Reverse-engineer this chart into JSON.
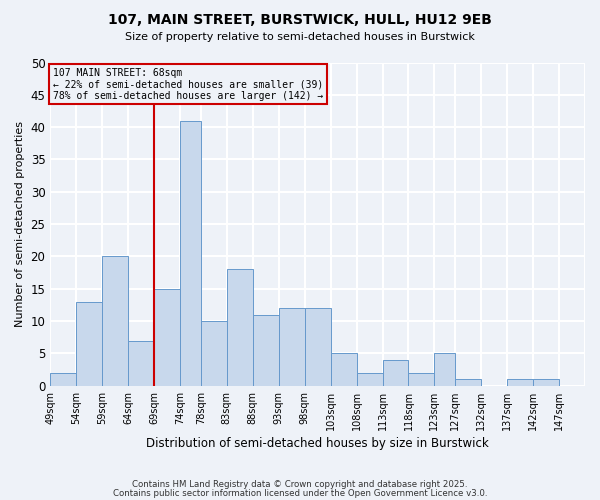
{
  "title": "107, MAIN STREET, BURSTWICK, HULL, HU12 9EB",
  "subtitle": "Size of property relative to semi-detached houses in Burstwick",
  "xlabel": "Distribution of semi-detached houses by size in Burstwick",
  "ylabel": "Number of semi-detached properties",
  "bin_labels": [
    "49sqm",
    "54sqm",
    "59sqm",
    "64sqm",
    "69sqm",
    "74sqm",
    "78sqm",
    "83sqm",
    "88sqm",
    "93sqm",
    "98sqm",
    "103sqm",
    "108sqm",
    "113sqm",
    "118sqm",
    "123sqm",
    "127sqm",
    "132sqm",
    "137sqm",
    "142sqm",
    "147sqm"
  ],
  "bin_edges": [
    49,
    54,
    59,
    64,
    69,
    74,
    78,
    83,
    88,
    93,
    98,
    103,
    108,
    113,
    118,
    123,
    127,
    132,
    137,
    142,
    147
  ],
  "counts": [
    2,
    13,
    20,
    7,
    15,
    41,
    10,
    18,
    11,
    12,
    12,
    5,
    2,
    4,
    2,
    5,
    1,
    0,
    1,
    1,
    0
  ],
  "bar_color": "#c8d8ec",
  "bar_edgecolor": "#6699cc",
  "vline_x": 69,
  "vline_color": "#cc0000",
  "annotation_title": "107 MAIN STREET: 68sqm",
  "annotation_line1": "← 22% of semi-detached houses are smaller (39)",
  "annotation_line2": "78% of semi-detached houses are larger (142) →",
  "annotation_box_color": "#cc0000",
  "ylim": [
    0,
    50
  ],
  "yticks": [
    0,
    5,
    10,
    15,
    20,
    25,
    30,
    35,
    40,
    45,
    50
  ],
  "background_color": "#eef2f8",
  "grid_color": "#ffffff",
  "footer1": "Contains HM Land Registry data © Crown copyright and database right 2025.",
  "footer2": "Contains public sector information licensed under the Open Government Licence v3.0."
}
